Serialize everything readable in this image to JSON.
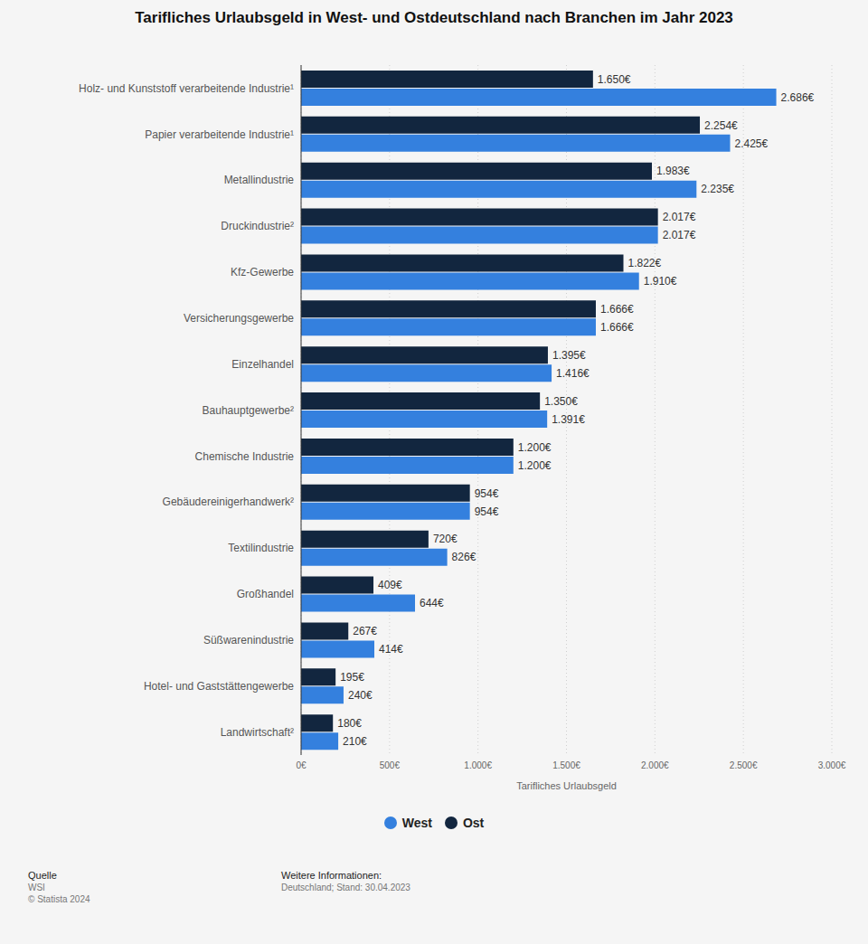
{
  "chart_data": {
    "type": "bar",
    "title": "Tarifliches Urlaubsgeld in West- und Ostdeutschland nach Branchen im Jahr 2023",
    "orientation": "horizontal",
    "x_label": "Tarifliches Urlaubsgeld",
    "categories": [
      "Holz- und Kunststoff verarbeitende Industrie¹",
      "Papier verarbeitende Industrie¹",
      "Metallindustrie",
      "Druckindustrie²",
      "Kfz-Gewerbe",
      "Versicherungsgewerbe",
      "Einzelhandel",
      "Bauhauptgewerbe²",
      "Chemische Industrie",
      "Gebäudereinigerhandwerk²",
      "Textilindustrie",
      "Großhandel",
      "Süßwarenindustrie",
      "Hotel- und Gaststättengewerbe",
      "Landwirtschaft²"
    ],
    "series": [
      {
        "name": "West",
        "color": "#3480de",
        "values": [
          2686,
          2425,
          2235,
          2017,
          1910,
          1666,
          1416,
          1391,
          1200,
          954,
          826,
          644,
          414,
          240,
          210
        ],
        "value_labels": [
          "2.686€",
          "2.425€",
          "2.235€",
          "2.017€",
          "1.910€",
          "1.666€",
          "1.416€",
          "1.391€",
          "1.200€",
          "954€",
          "826€",
          "644€",
          "414€",
          "240€",
          "210€"
        ]
      },
      {
        "name": "Ost",
        "color": "#12263f",
        "values": [
          1650,
          2254,
          1983,
          2017,
          1822,
          1666,
          1395,
          1350,
          1200,
          954,
          720,
          409,
          267,
          195,
          180
        ],
        "value_labels": [
          "1.650€",
          "2.254€",
          "1.983€",
          "2.017€",
          "1.822€",
          "1.666€",
          "1.395€",
          "1.350€",
          "1.200€",
          "954€",
          "720€",
          "409€",
          "267€",
          "195€",
          "180€"
        ]
      }
    ],
    "xlim": [
      0,
      3000
    ],
    "xticks": [
      {
        "value": 0,
        "label": "0€"
      },
      {
        "value": 500,
        "label": "500€"
      },
      {
        "value": 1000,
        "label": "1.000€"
      },
      {
        "value": 1500,
        "label": "1.500€"
      },
      {
        "value": 2000,
        "label": "2.000€"
      },
      {
        "value": 2500,
        "label": "2.500€"
      },
      {
        "value": 3000,
        "label": "3.000€"
      }
    ],
    "grid": true,
    "data_labels": true,
    "legend": "bottom",
    "footer": {
      "source_heading": "Quelle",
      "source": "WSI",
      "copyright": "© Statista 2024",
      "info_heading": "Weitere Informationen:",
      "info": "Deutschland; Stand: 30.04.2023"
    }
  }
}
